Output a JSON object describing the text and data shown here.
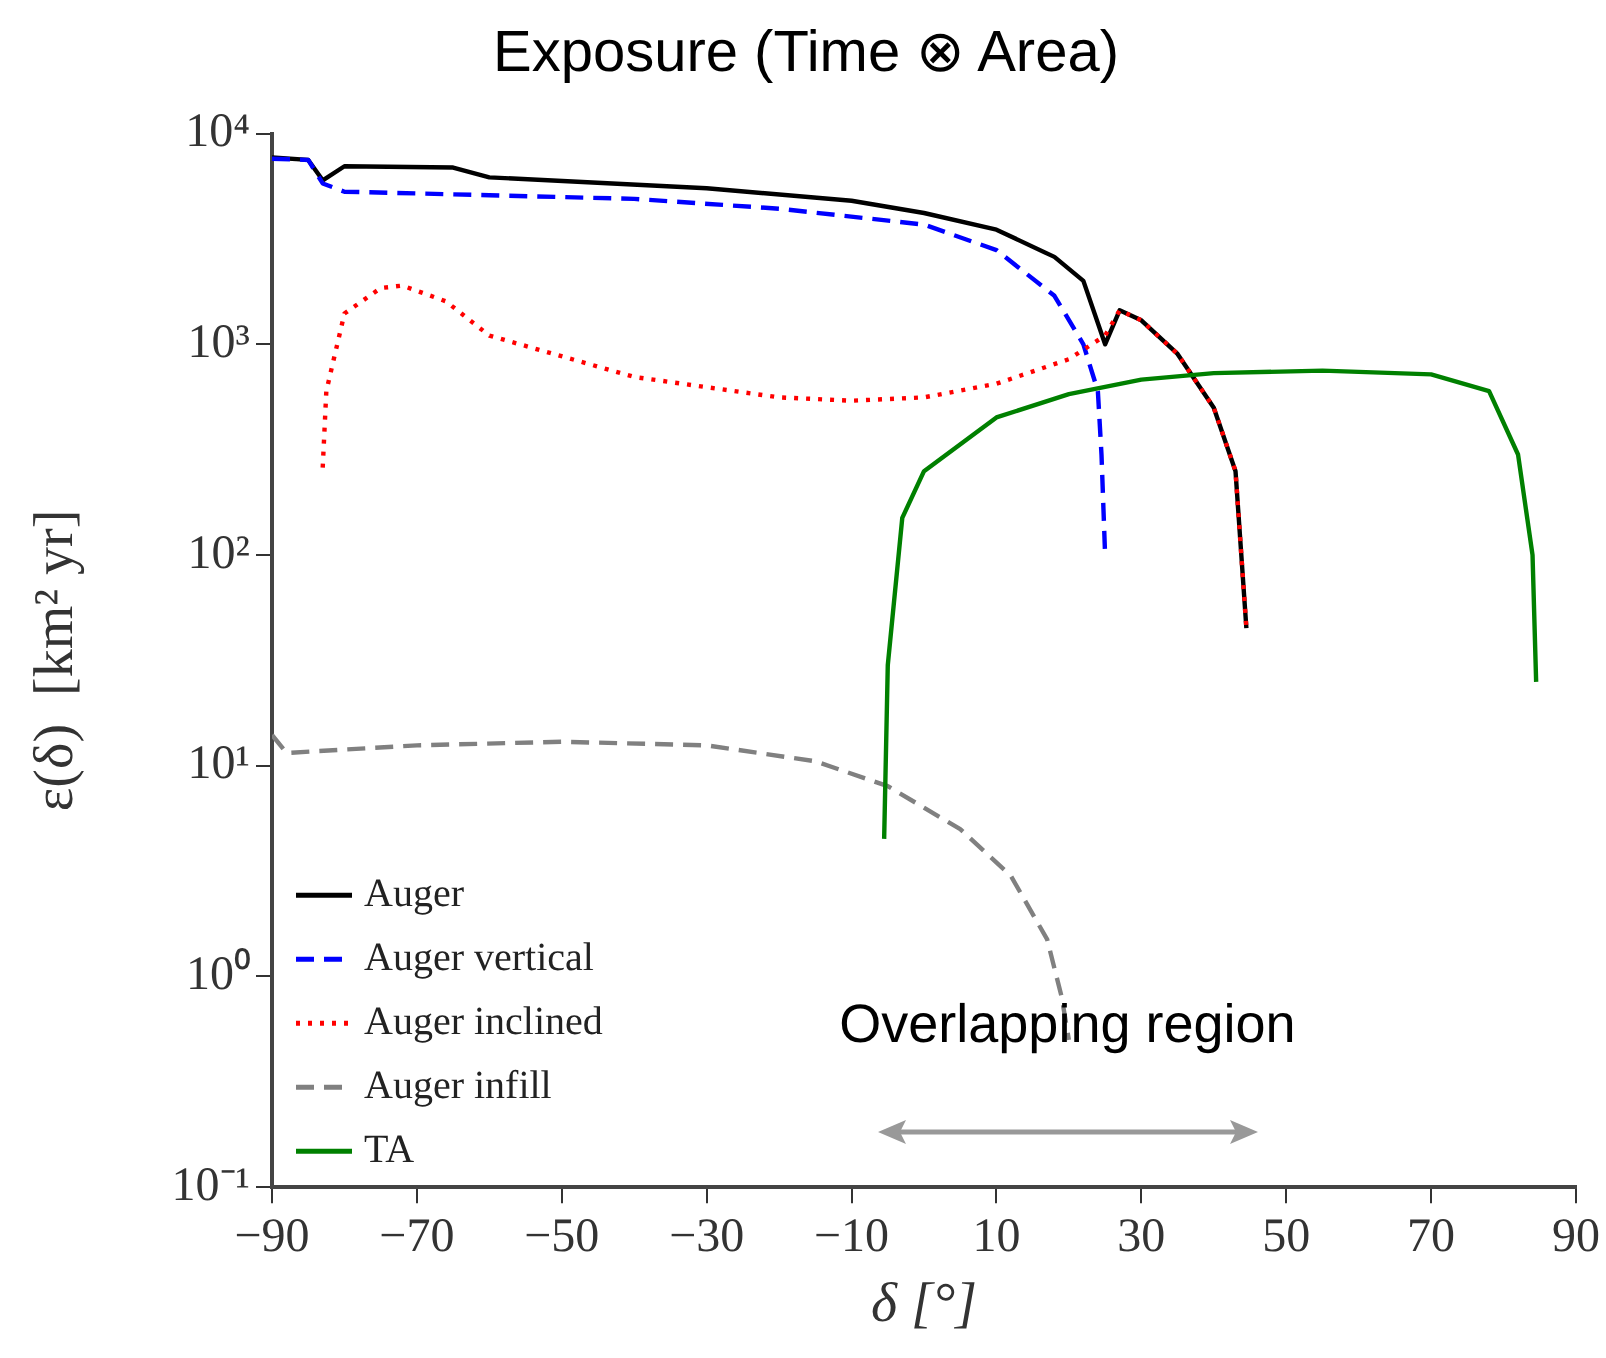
{
  "chart_data": {
    "type": "line",
    "title": "Exposure (Time ⊗ Area)",
    "xlabel": "δ [°]",
    "ylabel": "ε(δ)  [km² yr]",
    "log": "y",
    "grid": false,
    "legend": "bottom left",
    "marker": "none",
    "xlim": [
      -90,
      90
    ],
    "xticks": [
      -90,
      -70,
      -50,
      -30,
      -10,
      10,
      30,
      50,
      70,
      90
    ],
    "ylim": [
      0.1,
      10000
    ],
    "yticks": [
      {
        "value": 0.1,
        "label": "10⁻¹"
      },
      {
        "value": 1,
        "label": "10⁰"
      },
      {
        "value": 10,
        "label": "10¹"
      },
      {
        "value": 100,
        "label": "10²"
      },
      {
        "value": 1000,
        "label": "10³"
      },
      {
        "value": 10000,
        "label": "10⁴"
      }
    ],
    "annotations": [
      "Overlapping region"
    ],
    "series": [
      {
        "name": "Auger",
        "color": "#000000",
        "line_style": "solid",
        "x": [
          -90,
          -85,
          -83,
          -80,
          -65,
          -60,
          -30,
          -10,
          0,
          10,
          18,
          22,
          25,
          27,
          30,
          35,
          40,
          43,
          44.5
        ],
        "values": [
          7700,
          7500,
          6000,
          7000,
          6900,
          6200,
          5500,
          4800,
          4200,
          3500,
          2600,
          2000,
          1000,
          1450,
          1300,
          900,
          500,
          250,
          45
        ]
      },
      {
        "name": "Auger vertical",
        "color": "#0000ff",
        "line_style": "dashed",
        "x": [
          -90,
          -85,
          -83,
          -80,
          -60,
          -40,
          -20,
          0,
          10,
          18,
          22,
          24,
          24.5,
          25
        ],
        "values": [
          7600,
          7500,
          5800,
          5300,
          5100,
          4900,
          4400,
          3700,
          2800,
          1700,
          1000,
          600,
          300,
          100
        ]
      },
      {
        "name": "Auger inclined",
        "color": "#ff0000",
        "line_style": "dotted",
        "x": [
          -83,
          -82.5,
          -80,
          -75,
          -72,
          -66,
          -60,
          -40,
          -20,
          -10,
          0,
          10,
          20,
          25,
          27,
          30,
          35,
          40,
          43,
          44.5
        ],
        "values": [
          260,
          600,
          1400,
          1850,
          1900,
          1600,
          1100,
          700,
          560,
          540,
          560,
          650,
          850,
          1100,
          1450,
          1300,
          900,
          500,
          250,
          45
        ]
      },
      {
        "name": "Auger infill",
        "color": "#808080",
        "line_style": "dashed",
        "x": [
          -90,
          -88,
          -70,
          -50,
          -30,
          -15,
          -5,
          5,
          12,
          17,
          19,
          20
        ],
        "values": [
          14,
          11.5,
          12.5,
          13,
          12.5,
          10.5,
          8,
          5,
          3,
          1.5,
          0.8,
          0.5
        ]
      },
      {
        "name": "TA",
        "color": "#008000",
        "line_style": "solid",
        "x": [
          -5.5,
          -5,
          -3,
          0,
          10,
          20,
          30,
          40,
          55,
          70,
          78,
          82,
          84,
          84.5
        ],
        "values": [
          4.5,
          30,
          150,
          250,
          450,
          580,
          680,
          730,
          750,
          720,
          600,
          300,
          100,
          25
        ]
      }
    ]
  }
}
